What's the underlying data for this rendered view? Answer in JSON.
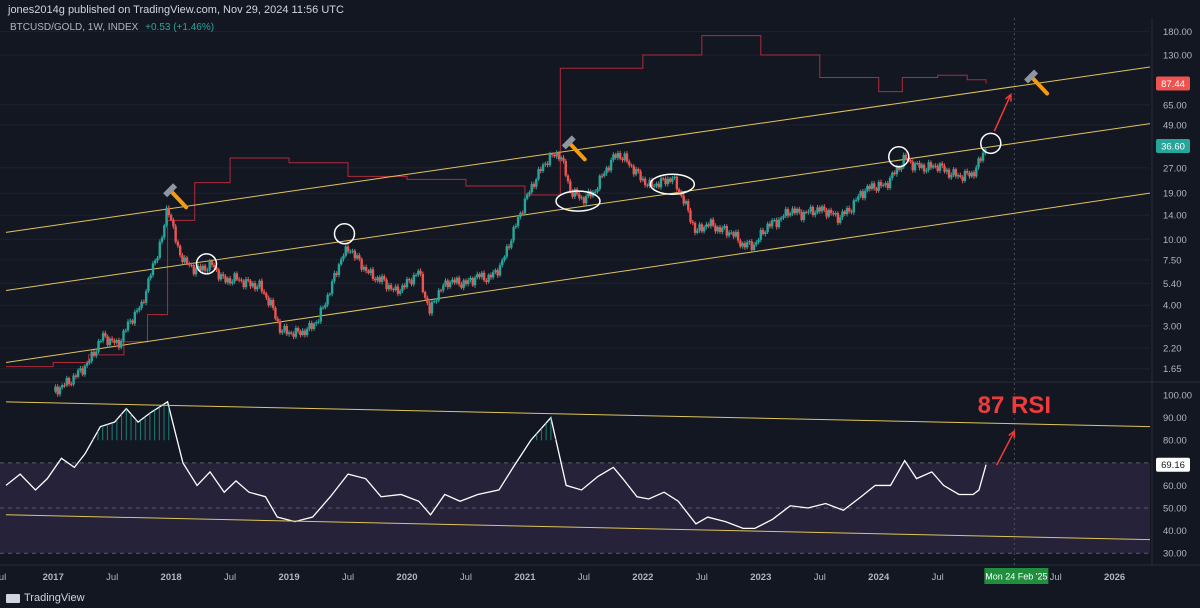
{
  "header": {
    "published": "jones2014g published on TradingView.com, Nov 29, 2024 11:56 UTC",
    "symbol": "BTCUSD/GOLD, 1W, INDEX",
    "change": "+0.53 (+1.46%)"
  },
  "watermark": "TradingView",
  "colors": {
    "background": "#131722",
    "up": "#26a69a",
    "down": "#ef5350",
    "channel": "#e0c45c",
    "rsi_line": "#ffffff",
    "red_line": "#b02a3a",
    "rsi_band": "#2a2540",
    "annotation": "#ef3b3b",
    "axis_text": "#b2b5be"
  },
  "chart_data": [
    {
      "type": "candlestick",
      "scale": "log",
      "price_ticks": [
        "180.00",
        "130.00",
        "65.00",
        "49.00",
        "27.00",
        "19.00",
        "14.00",
        "10.00",
        "7.50",
        "5.40",
        "4.00",
        "3.00",
        "2.20",
        "1.65"
      ],
      "price_labels": [
        {
          "value": 87.44,
          "text": "87.44",
          "color": "#ef5350"
        },
        {
          "value": 36.6,
          "text": "36.60",
          "color": "#26a69a"
        }
      ],
      "closes": [
        {
          "t": 2017.0,
          "v": 1.2
        },
        {
          "t": 2017.15,
          "v": 1.4
        },
        {
          "t": 2017.3,
          "v": 1.8
        },
        {
          "t": 2017.42,
          "v": 2.6
        },
        {
          "t": 2017.55,
          "v": 2.3
        },
        {
          "t": 2017.65,
          "v": 3.2
        },
        {
          "t": 2017.75,
          "v": 4.0
        },
        {
          "t": 2017.85,
          "v": 7.0
        },
        {
          "t": 2017.93,
          "v": 10.5
        },
        {
          "t": 2017.97,
          "v": 16.5
        },
        {
          "t": 2018.05,
          "v": 9.0
        },
        {
          "t": 2018.12,
          "v": 7.2
        },
        {
          "t": 2018.22,
          "v": 6.5
        },
        {
          "t": 2018.35,
          "v": 7.0
        },
        {
          "t": 2018.45,
          "v": 5.6
        },
        {
          "t": 2018.55,
          "v": 5.8
        },
        {
          "t": 2018.65,
          "v": 5.4
        },
        {
          "t": 2018.75,
          "v": 5.2
        },
        {
          "t": 2018.85,
          "v": 4.0
        },
        {
          "t": 2018.93,
          "v": 2.8
        },
        {
          "t": 2019.05,
          "v": 2.7
        },
        {
          "t": 2019.15,
          "v": 2.8
        },
        {
          "t": 2019.25,
          "v": 3.3
        },
        {
          "t": 2019.35,
          "v": 5.0
        },
        {
          "t": 2019.45,
          "v": 8.0
        },
        {
          "t": 2019.52,
          "v": 8.8
        },
        {
          "t": 2019.6,
          "v": 7.2
        },
        {
          "t": 2019.7,
          "v": 6.0
        },
        {
          "t": 2019.8,
          "v": 5.6
        },
        {
          "t": 2019.9,
          "v": 4.8
        },
        {
          "t": 2020.0,
          "v": 5.4
        },
        {
          "t": 2020.1,
          "v": 6.4
        },
        {
          "t": 2020.19,
          "v": 3.6
        },
        {
          "t": 2020.25,
          "v": 4.6
        },
        {
          "t": 2020.35,
          "v": 5.6
        },
        {
          "t": 2020.5,
          "v": 5.4
        },
        {
          "t": 2020.6,
          "v": 6.0
        },
        {
          "t": 2020.7,
          "v": 5.8
        },
        {
          "t": 2020.8,
          "v": 7.0
        },
        {
          "t": 2020.9,
          "v": 11.0
        },
        {
          "t": 2021.0,
          "v": 17.0
        },
        {
          "t": 2021.1,
          "v": 24.0
        },
        {
          "t": 2021.2,
          "v": 31.0
        },
        {
          "t": 2021.3,
          "v": 33.0
        },
        {
          "t": 2021.38,
          "v": 20.0
        },
        {
          "t": 2021.48,
          "v": 17.5
        },
        {
          "t": 2021.58,
          "v": 19.0
        },
        {
          "t": 2021.68,
          "v": 26.0
        },
        {
          "t": 2021.78,
          "v": 33.0
        },
        {
          "t": 2021.86,
          "v": 30.0
        },
        {
          "t": 2021.95,
          "v": 25.0
        },
        {
          "t": 2022.05,
          "v": 21.0
        },
        {
          "t": 2022.15,
          "v": 22.0
        },
        {
          "t": 2022.25,
          "v": 23.5
        },
        {
          "t": 2022.35,
          "v": 17.0
        },
        {
          "t": 2022.45,
          "v": 11.0
        },
        {
          "t": 2022.55,
          "v": 12.5
        },
        {
          "t": 2022.65,
          "v": 11.5
        },
        {
          "t": 2022.75,
          "v": 11.0
        },
        {
          "t": 2022.85,
          "v": 9.2
        },
        {
          "t": 2022.95,
          "v": 9.3
        },
        {
          "t": 2023.05,
          "v": 12.0
        },
        {
          "t": 2023.15,
          "v": 13.0
        },
        {
          "t": 2023.25,
          "v": 15.0
        },
        {
          "t": 2023.35,
          "v": 14.2
        },
        {
          "t": 2023.45,
          "v": 15.0
        },
        {
          "t": 2023.55,
          "v": 15.0
        },
        {
          "t": 2023.65,
          "v": 13.5
        },
        {
          "t": 2023.75,
          "v": 15.0
        },
        {
          "t": 2023.85,
          "v": 19.0
        },
        {
          "t": 2023.95,
          "v": 21.0
        },
        {
          "t": 2024.05,
          "v": 21.0
        },
        {
          "t": 2024.15,
          "v": 26.0
        },
        {
          "t": 2024.22,
          "v": 31.0
        },
        {
          "t": 2024.3,
          "v": 28.0
        },
        {
          "t": 2024.4,
          "v": 27.0
        },
        {
          "t": 2024.5,
          "v": 28.0
        },
        {
          "t": 2024.6,
          "v": 25.0
        },
        {
          "t": 2024.7,
          "v": 24.0
        },
        {
          "t": 2024.8,
          "v": 25.0
        },
        {
          "t": 2024.85,
          "v": 29.0
        },
        {
          "t": 2024.91,
          "v": 36.6
        }
      ],
      "overlay_series": [
        {
          "t": 2016.6,
          "v": 1.7
        },
        {
          "t": 2017.0,
          "v": 1.8
        },
        {
          "t": 2017.3,
          "v": 2.0
        },
        {
          "t": 2017.6,
          "v": 2.4
        },
        {
          "t": 2017.8,
          "v": 3.5
        },
        {
          "t": 2017.97,
          "v": 13.0
        },
        {
          "t": 2018.2,
          "v": 22.0
        },
        {
          "t": 2018.5,
          "v": 31.0
        },
        {
          "t": 2019.0,
          "v": 29.0
        },
        {
          "t": 2019.5,
          "v": 24.0
        },
        {
          "t": 2020.0,
          "v": 23.0
        },
        {
          "t": 2020.5,
          "v": 21.0
        },
        {
          "t": 2021.0,
          "v": 18.5
        },
        {
          "t": 2021.28,
          "v": 18.5
        },
        {
          "t": 2021.3,
          "v": 108.0
        },
        {
          "t": 2021.7,
          "v": 108.0
        },
        {
          "t": 2022.0,
          "v": 130.0
        },
        {
          "t": 2022.5,
          "v": 170.0
        },
        {
          "t": 2023.0,
          "v": 130.0
        },
        {
          "t": 2023.5,
          "v": 95.0
        },
        {
          "t": 2024.0,
          "v": 78.0
        },
        {
          "t": 2024.2,
          "v": 95.0
        },
        {
          "t": 2024.5,
          "v": 98.0
        },
        {
          "t": 2024.75,
          "v": 92.0
        },
        {
          "t": 2024.91,
          "v": 87.44
        }
      ],
      "channel_lines": [
        {
          "name": "upper",
          "from": {
            "t": 2016.6,
            "v": 11.0
          },
          "to": {
            "t": 2026.3,
            "v": 110.0
          }
        },
        {
          "name": "middle",
          "from": {
            "t": 2016.6,
            "v": 4.9
          },
          "to": {
            "t": 2026.3,
            "v": 50.0
          }
        },
        {
          "name": "lower",
          "from": {
            "t": 2016.6,
            "v": 1.8
          },
          "to": {
            "t": 2026.3,
            "v": 19.0
          }
        }
      ]
    },
    {
      "type": "line",
      "name": "RSI",
      "rsi_ticks": [
        100,
        90,
        80,
        70,
        60,
        50,
        40,
        30
      ],
      "rsi_label": {
        "value": 69.16,
        "text": "69.16"
      },
      "rsi_band": [
        30,
        70
      ],
      "values": [
        {
          "t": 2016.6,
          "v": 60
        },
        {
          "t": 2016.72,
          "v": 65
        },
        {
          "t": 2016.85,
          "v": 58
        },
        {
          "t": 2016.95,
          "v": 63
        },
        {
          "t": 2017.07,
          "v": 72
        },
        {
          "t": 2017.18,
          "v": 68
        },
        {
          "t": 2017.27,
          "v": 74
        },
        {
          "t": 2017.4,
          "v": 86
        },
        {
          "t": 2017.52,
          "v": 88
        },
        {
          "t": 2017.62,
          "v": 94
        },
        {
          "t": 2017.72,
          "v": 88
        },
        {
          "t": 2017.82,
          "v": 92
        },
        {
          "t": 2017.97,
          "v": 97
        },
        {
          "t": 2018.1,
          "v": 70
        },
        {
          "t": 2018.22,
          "v": 60
        },
        {
          "t": 2018.33,
          "v": 66
        },
        {
          "t": 2018.45,
          "v": 57
        },
        {
          "t": 2018.55,
          "v": 62
        },
        {
          "t": 2018.66,
          "v": 57
        },
        {
          "t": 2018.8,
          "v": 55
        },
        {
          "t": 2018.9,
          "v": 46
        },
        {
          "t": 2019.05,
          "v": 44
        },
        {
          "t": 2019.2,
          "v": 46
        },
        {
          "t": 2019.35,
          "v": 55
        },
        {
          "t": 2019.5,
          "v": 65
        },
        {
          "t": 2019.65,
          "v": 63
        },
        {
          "t": 2019.78,
          "v": 55
        },
        {
          "t": 2019.95,
          "v": 56
        },
        {
          "t": 2020.1,
          "v": 53
        },
        {
          "t": 2020.2,
          "v": 47
        },
        {
          "t": 2020.32,
          "v": 56
        },
        {
          "t": 2020.45,
          "v": 53
        },
        {
          "t": 2020.6,
          "v": 56
        },
        {
          "t": 2020.78,
          "v": 58
        },
        {
          "t": 2020.9,
          "v": 68
        },
        {
          "t": 2021.05,
          "v": 80
        },
        {
          "t": 2021.22,
          "v": 90
        },
        {
          "t": 2021.35,
          "v": 60
        },
        {
          "t": 2021.48,
          "v": 58
        },
        {
          "t": 2021.62,
          "v": 64
        },
        {
          "t": 2021.75,
          "v": 68
        },
        {
          "t": 2021.83,
          "v": 63
        },
        {
          "t": 2021.95,
          "v": 55
        },
        {
          "t": 2022.05,
          "v": 54
        },
        {
          "t": 2022.18,
          "v": 57
        },
        {
          "t": 2022.3,
          "v": 53
        },
        {
          "t": 2022.45,
          "v": 43
        },
        {
          "t": 2022.55,
          "v": 46
        },
        {
          "t": 2022.7,
          "v": 44
        },
        {
          "t": 2022.85,
          "v": 41
        },
        {
          "t": 2022.95,
          "v": 41
        },
        {
          "t": 2023.1,
          "v": 45
        },
        {
          "t": 2023.25,
          "v": 51
        },
        {
          "t": 2023.4,
          "v": 50
        },
        {
          "t": 2023.55,
          "v": 52
        },
        {
          "t": 2023.7,
          "v": 49
        },
        {
          "t": 2023.85,
          "v": 55
        },
        {
          "t": 2023.97,
          "v": 60
        },
        {
          "t": 2024.1,
          "v": 60
        },
        {
          "t": 2024.22,
          "v": 71
        },
        {
          "t": 2024.32,
          "v": 63
        },
        {
          "t": 2024.45,
          "v": 66
        },
        {
          "t": 2024.55,
          "v": 60
        },
        {
          "t": 2024.68,
          "v": 56
        },
        {
          "t": 2024.8,
          "v": 56
        },
        {
          "t": 2024.85,
          "v": 58
        },
        {
          "t": 2024.91,
          "v": 69.16
        }
      ],
      "trend_lines": [
        {
          "name": "rsi-upper",
          "from": {
            "t": 2016.6,
            "v": 97
          },
          "to": {
            "t": 2026.3,
            "v": 86
          }
        },
        {
          "name": "rsi-lower",
          "from": {
            "t": 2016.6,
            "v": 47
          },
          "to": {
            "t": 2026.3,
            "v": 36
          }
        }
      ]
    }
  ],
  "time_axis": {
    "labels": [
      {
        "t": 2016.55,
        "text": "Jul"
      },
      {
        "t": 2017.0,
        "text": "2017"
      },
      {
        "t": 2017.5,
        "text": "Jul"
      },
      {
        "t": 2018.0,
        "text": "2018"
      },
      {
        "t": 2018.5,
        "text": "Jul"
      },
      {
        "t": 2019.0,
        "text": "2019"
      },
      {
        "t": 2019.5,
        "text": "Jul"
      },
      {
        "t": 2020.0,
        "text": "2020"
      },
      {
        "t": 2020.5,
        "text": "Jul"
      },
      {
        "t": 2021.0,
        "text": "2021"
      },
      {
        "t": 2021.5,
        "text": "Jul"
      },
      {
        "t": 2022.0,
        "text": "2022"
      },
      {
        "t": 2022.5,
        "text": "Jul"
      },
      {
        "t": 2023.0,
        "text": "2023"
      },
      {
        "t": 2023.5,
        "text": "Jul"
      },
      {
        "t": 2024.0,
        "text": "2024"
      },
      {
        "t": 2024.5,
        "text": "Jul"
      },
      {
        "t": 2025.5,
        "text": "Jul"
      },
      {
        "t": 2026.0,
        "text": "2026"
      }
    ],
    "cursor_label": {
      "t": 2025.15,
      "text": "Mon 24 Feb '25"
    }
  },
  "annotations": {
    "rsi_text": "87 RSI",
    "circles": [
      {
        "t": 2018.3,
        "v": 7.1
      },
      {
        "t": 2019.47,
        "v": 10.8
      },
      {
        "t": 2021.45,
        "v": 17.0
      },
      {
        "t": 2022.25,
        "v": 21.5
      },
      {
        "t": 2024.17,
        "v": 31.5
      },
      {
        "t": 2024.95,
        "v": 38.0
      }
    ],
    "hammers": [
      {
        "t": 2018.0,
        "v": 19.5
      },
      {
        "t": 2021.38,
        "v": 38.0
      },
      {
        "t": 2025.3,
        "v": 95.0
      }
    ]
  }
}
